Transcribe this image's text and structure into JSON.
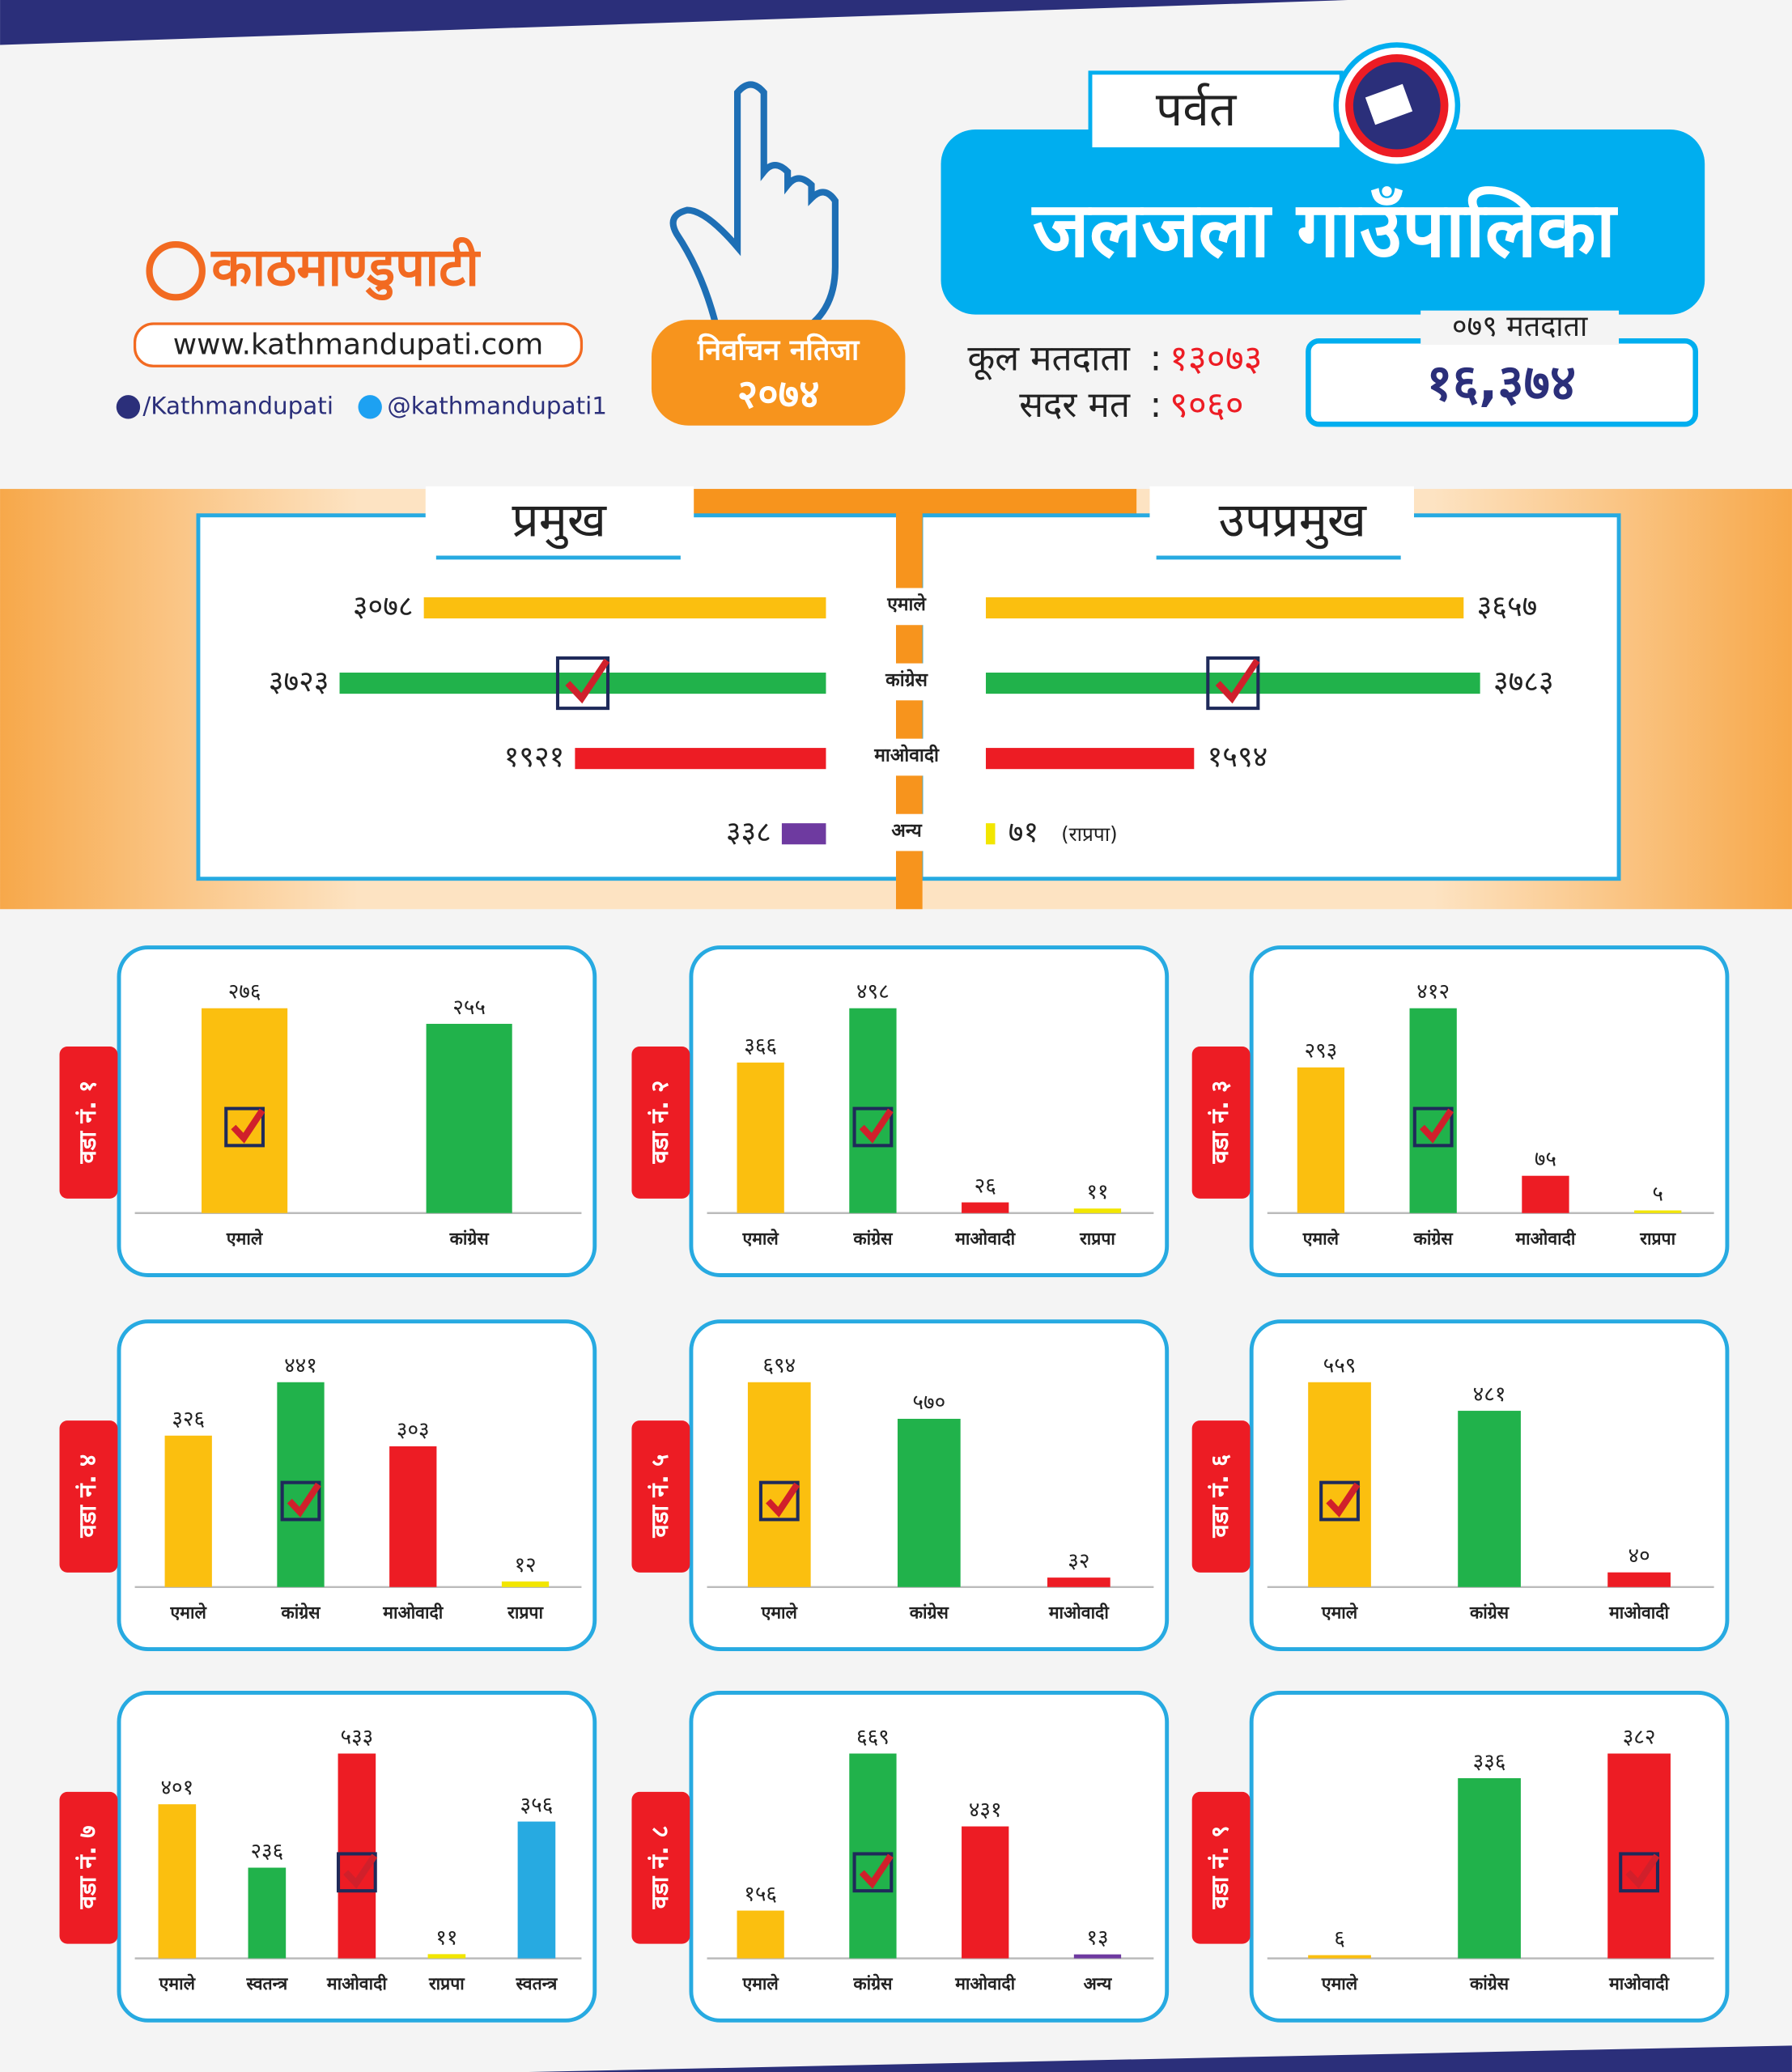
{
  "header": {
    "brand": "काठमाण्डुपाटी",
    "website": "www.kathmandupati.com",
    "facebook": "/Kathmandupati",
    "twitter": "@kathmandupati1",
    "badge_title": "निर्वाचन नतिजा",
    "badge_year": "२०७४",
    "district": "पर्वत",
    "municipality": "जलजला गाउँपालिका",
    "total_voters_label": "कूल मतदाता",
    "total_voters": "१३०७३",
    "valid_votes_label": "सदर मत",
    "valid_votes": "९०६०",
    "voters_079_label": "०७९ मतदाता",
    "voters_079": "१६,३७४"
  },
  "chart_data": [
    {
      "type": "diverging-bar",
      "categories": [
        "एमाले",
        "कांग्रेस",
        "माओवादी",
        "अन्य"
      ],
      "series": [
        {
          "name": "प्रमुख",
          "values": [
            3078,
            3723,
            1921,
            338
          ],
          "value_labels": [
            "३०७८",
            "३७२३",
            "१९२१",
            "३३८"
          ],
          "colors": [
            "#fbbf0f",
            "#21b24b",
            "#ed1c24",
            "#6e3aa0"
          ],
          "winner": 1
        },
        {
          "name": "उपप्रमुख",
          "values": [
            3657,
            3783,
            1594,
            71
          ],
          "value_labels": [
            "३६५७",
            "३७८३",
            "१५९४",
            "७१"
          ],
          "colors": [
            "#fbbf0f",
            "#21b24b",
            "#ed1c24",
            "#f2e600"
          ],
          "winner": 1
        }
      ],
      "annotation": "(राप्रपा)"
    },
    {
      "type": "bar",
      "title": "वडा नं. १",
      "categories": [
        "एमाले",
        "कांग्रेस"
      ],
      "values": [
        276,
        255
      ],
      "value_labels": [
        "२७६",
        "२५५"
      ],
      "colors": [
        "#fbbf0f",
        "#21b24b"
      ],
      "winner": 0
    },
    {
      "type": "bar",
      "title": "वडा नं. २",
      "categories": [
        "एमाले",
        "कांग्रेस",
        "माओवादी",
        "राप्रपा"
      ],
      "values": [
        366,
        498,
        26,
        11
      ],
      "value_labels": [
        "३६६",
        "४९८",
        "२६",
        "११"
      ],
      "colors": [
        "#fbbf0f",
        "#21b24b",
        "#ed1c24",
        "#f2e600"
      ],
      "winner": 1
    },
    {
      "type": "bar",
      "title": "वडा नं. ३",
      "categories": [
        "एमाले",
        "कांग्रेस",
        "माओवादी",
        "राप्रपा"
      ],
      "values": [
        293,
        412,
        75,
        5
      ],
      "value_labels": [
        "२९३",
        "४१२",
        "७५",
        "५"
      ],
      "colors": [
        "#fbbf0f",
        "#21b24b",
        "#ed1c24",
        "#f2e600"
      ],
      "winner": 1
    },
    {
      "type": "bar",
      "title": "वडा नं. ४",
      "categories": [
        "एमाले",
        "कांग्रेस",
        "माओवादी",
        "राप्रपा"
      ],
      "values": [
        326,
        441,
        303,
        12
      ],
      "value_labels": [
        "३२६",
        "४४१",
        "३०३",
        "१२"
      ],
      "colors": [
        "#fbbf0f",
        "#21b24b",
        "#ed1c24",
        "#f2e600"
      ],
      "winner": 1
    },
    {
      "type": "bar",
      "title": "वडा नं. ५",
      "categories": [
        "एमाले",
        "कांग्रेस",
        "माओवादी"
      ],
      "values": [
        694,
        570,
        32
      ],
      "value_labels": [
        "६९४",
        "५७०",
        "३२"
      ],
      "colors": [
        "#fbbf0f",
        "#21b24b",
        "#ed1c24"
      ],
      "winner": 0
    },
    {
      "type": "bar",
      "title": "वडा नं. ६",
      "categories": [
        "एमाले",
        "कांग्रेस",
        "माओवादी"
      ],
      "values": [
        559,
        481,
        40
      ],
      "value_labels": [
        "५५९",
        "४८१",
        "४०"
      ],
      "colors": [
        "#fbbf0f",
        "#21b24b",
        "#ed1c24"
      ],
      "winner": 0
    },
    {
      "type": "bar",
      "title": "वडा नं. ७",
      "categories": [
        "एमाले",
        "स्वतन्त्र",
        "माओवादी",
        "राप्रपा",
        "स्वतन्त्र"
      ],
      "values": [
        401,
        236,
        533,
        11,
        356
      ],
      "value_labels": [
        "४०१",
        "२३६",
        "५३३",
        "११",
        "३५६"
      ],
      "colors": [
        "#fbbf0f",
        "#21b24b",
        "#ed1c24",
        "#f2e600",
        "#27aae1"
      ],
      "winner": 2
    },
    {
      "type": "bar",
      "title": "वडा नं. ८",
      "categories": [
        "एमाले",
        "कांग्रेस",
        "माओवादी",
        "अन्य"
      ],
      "values": [
        156,
        669,
        431,
        13
      ],
      "value_labels": [
        "१५६",
        "६६९",
        "४३१",
        "१३"
      ],
      "colors": [
        "#fbbf0f",
        "#21b24b",
        "#ed1c24",
        "#6e3aa0"
      ],
      "winner": 1
    },
    {
      "type": "bar",
      "title": "वडा नं. ९",
      "categories": [
        "एमाले",
        "कांग्रेस",
        "माओवादी"
      ],
      "values": [
        6,
        336,
        382
      ],
      "value_labels": [
        "६",
        "३३६",
        "३८२"
      ],
      "colors": [
        "#fbbf0f",
        "#21b24b",
        "#ed1c24"
      ],
      "winner": 2
    }
  ]
}
